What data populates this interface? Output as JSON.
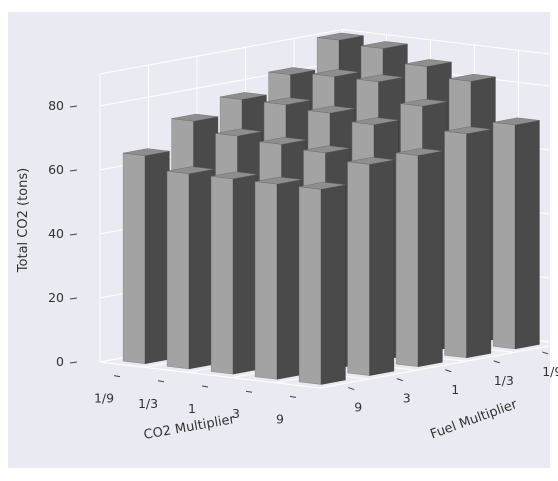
{
  "chart_data": {
    "type": "bar3d",
    "zlabel": "Total CO2 (tons)",
    "xlabel": "CO2 Multiplier",
    "ylabel": "Fuel Multiplier",
    "x_categories": [
      "1/9",
      "1/3",
      "1",
      "3",
      "9"
    ],
    "y_categories": [
      "9",
      "3",
      "1",
      "1/3",
      "1/9"
    ],
    "z_ticks": [
      0,
      20,
      40,
      60,
      80
    ],
    "zlim": [
      0,
      90
    ],
    "bar_color": "#8a8a8a",
    "grid": true,
    "values": [
      [
        65,
        73,
        77,
        82,
        90
      ],
      [
        61,
        70,
        77,
        83,
        89
      ],
      [
        61,
        69,
        76,
        83,
        85
      ],
      [
        61,
        68,
        74,
        77,
        82
      ],
      [
        61,
        66,
        66,
        70,
        70
      ]
    ]
  }
}
